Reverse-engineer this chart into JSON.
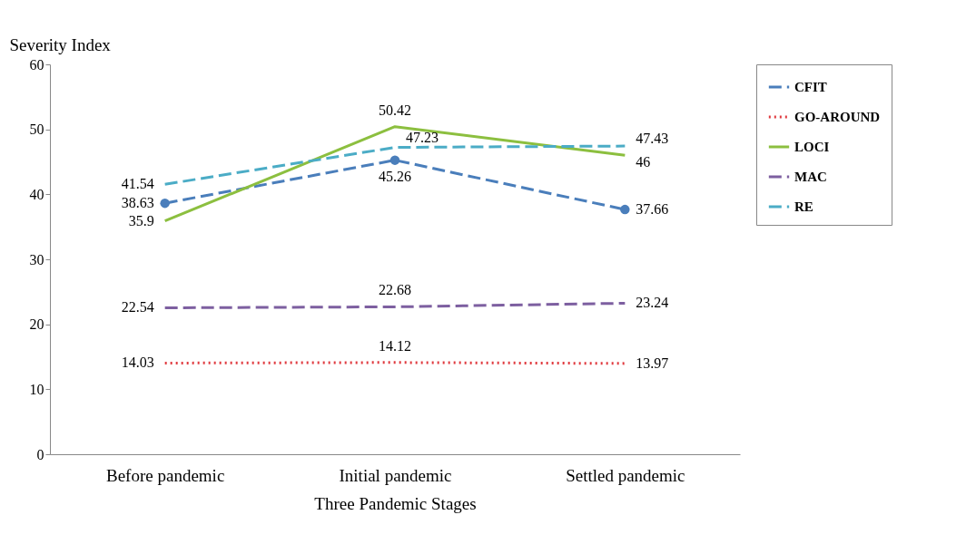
{
  "chart_data": {
    "type": "line",
    "xlabel": "Three Pandemic Stages",
    "ylabel": "Severity Index",
    "categories": [
      "Before pandemic",
      "Initial pandemic",
      "Settled pandemic"
    ],
    "series": [
      {
        "name": "CFIT",
        "color": "#4a7ebb",
        "line_style": "dashed",
        "marker": "circle",
        "values": [
          38.63,
          45.26,
          37.66
        ]
      },
      {
        "name": "GO-AROUND",
        "color": "#e0393e",
        "line_style": "dotted",
        "values": [
          14.03,
          14.12,
          13.97
        ]
      },
      {
        "name": "LOCI",
        "color": "#8cbf3f",
        "line_style": "solid",
        "values": [
          35.9,
          50.42,
          46
        ]
      },
      {
        "name": "MAC",
        "color": "#7d5fa0",
        "line_style": "dashed",
        "values": [
          22.54,
          22.68,
          23.24
        ]
      },
      {
        "name": "RE",
        "color": "#4bacc6",
        "line_style": "dashed",
        "values": [
          41.54,
          47.23,
          47.43
        ]
      }
    ],
    "ylim": [
      0,
      60
    ],
    "yticks": [
      0,
      10,
      20,
      30,
      40,
      50,
      60
    ],
    "grid": false,
    "legend": "right",
    "data_labels": true
  }
}
